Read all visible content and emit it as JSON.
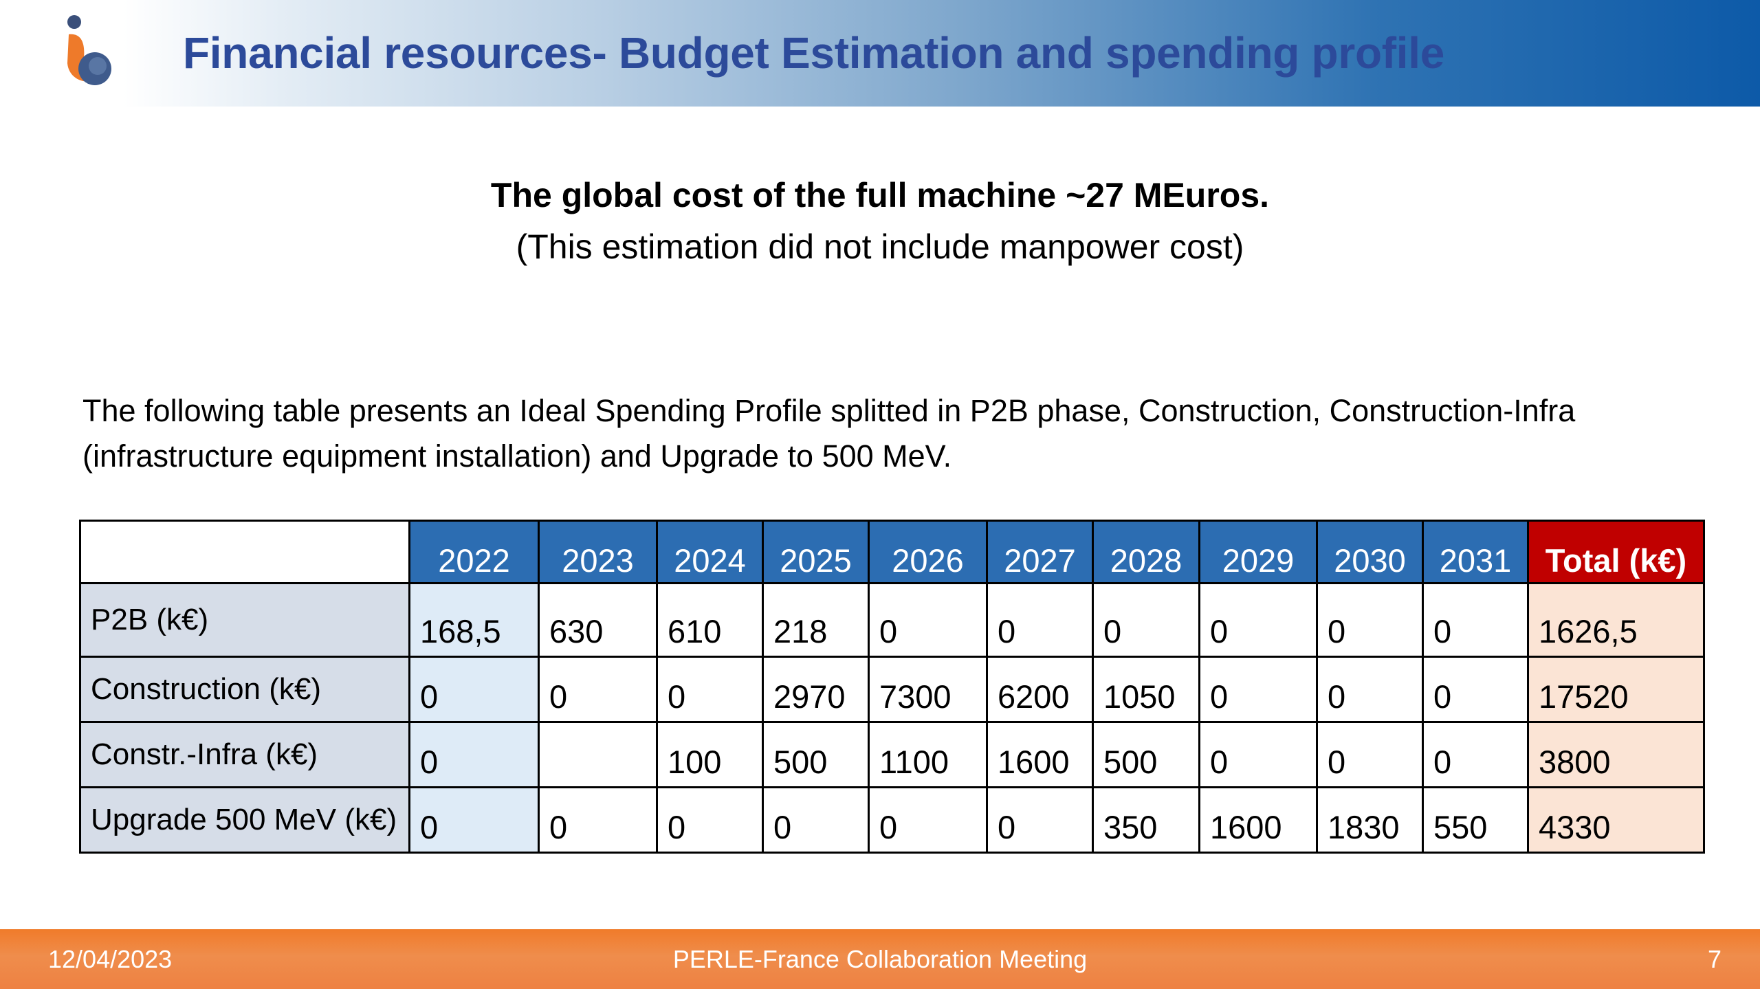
{
  "header": {
    "title": "Financial resources- Budget Estimation and spending profile",
    "logo_icon": "perle-logo-icon",
    "accent_color": "#2c4a9a"
  },
  "headline": "The global cost of the full machine ~27 MEuros.",
  "subline": "(This estimation did not include manpower cost)",
  "intro": "The following table presents an Ideal Spending Profile splitted in P2B phase, Construction, Construction-Infra (infrastructure equipment installation) and Upgrade to 500 MeV.",
  "table": {
    "header_color": "#2c6db2",
    "total_header_color": "#c00000",
    "years": [
      "2022",
      "2023",
      "2024",
      "2025",
      "2026",
      "2027",
      "2028",
      "2029",
      "2030",
      "2031"
    ],
    "total_label": "Total (k€)",
    "rows": [
      {
        "label": "P2B (k€)",
        "values": [
          "168,5",
          "630",
          "610",
          "218",
          "0",
          "0",
          "0",
          "0",
          "0",
          "0"
        ],
        "total": "1626,5"
      },
      {
        "label": "Construction (k€)",
        "values": [
          "0",
          "0",
          "0",
          "2970",
          "7300",
          "6200",
          "1050",
          "0",
          "0",
          "0"
        ],
        "total": "17520"
      },
      {
        "label": "Constr.-Infra (k€)",
        "values": [
          "0",
          "",
          "100",
          "500",
          "1100",
          "1600",
          "500",
          "0",
          "0",
          "0"
        ],
        "total": "3800"
      },
      {
        "label": "Upgrade 500 MeV (k€)",
        "values": [
          "0",
          "0",
          "0",
          "0",
          "0",
          "0",
          "350",
          "1600",
          "1830",
          "550"
        ],
        "total": "4330"
      }
    ]
  },
  "footer": {
    "date": "12/04/2023",
    "center": "PERLE-France Collaboration Meeting",
    "page": "7",
    "color": "#f07b2a"
  }
}
